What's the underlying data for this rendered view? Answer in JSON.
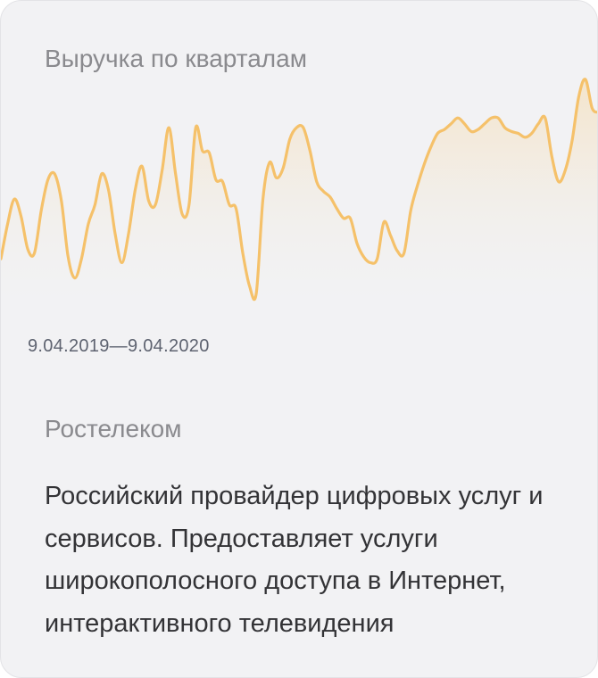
{
  "card": {
    "title": "Выручка по кварталам",
    "date_range": "9.04.2019—9.04.2020",
    "company": "Ростелеком",
    "description": "Российский провайдер цифровых услуг и сервисов. Предоставляет услуги широкополосного доступа в Интернет, интерактивного телевидения"
  },
  "colors": {
    "card_background": "#f2f2f4",
    "line": "#f5c16a",
    "title_text": "#8a8a8e",
    "body_text": "#333336",
    "date_text": "#5e6370"
  },
  "chart_data": {
    "type": "area",
    "title": "Выручка по кварталам",
    "xlabel": "",
    "ylabel": "",
    "x_range": [
      "9.04.2019",
      "9.04.2020"
    ],
    "grid": false,
    "legend": "none",
    "values": [
      42,
      60,
      73,
      64,
      47,
      45,
      67,
      83,
      86,
      72,
      43,
      32,
      42,
      60,
      70,
      86,
      78,
      55,
      40,
      55,
      78,
      90,
      72,
      70,
      88,
      110,
      86,
      65,
      70,
      110,
      98,
      97,
      83,
      82,
      70,
      68,
      45,
      28,
      24,
      73,
      92,
      84,
      89,
      104,
      110,
      110,
      98,
      82,
      77,
      74,
      68,
      63,
      63,
      50,
      43,
      40,
      42,
      61,
      54,
      46,
      45,
      67,
      80,
      91,
      100,
      107,
      109,
      112,
      115,
      112,
      108,
      109,
      112,
      115,
      115,
      110,
      108,
      107,
      105,
      107,
      112,
      115,
      95,
      82,
      88,
      103,
      126,
      135,
      120,
      118
    ]
  }
}
